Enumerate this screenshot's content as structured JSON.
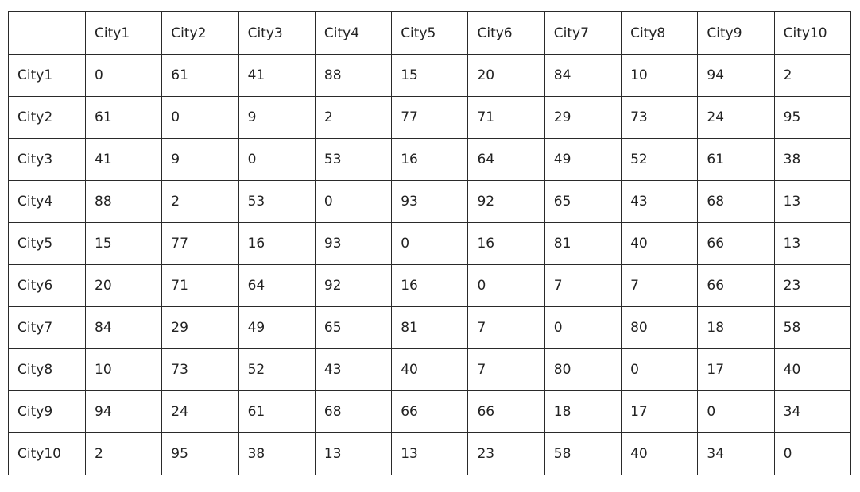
{
  "table": {
    "corner": "",
    "columns": [
      "City1",
      "City2",
      "City3",
      "City4",
      "City5",
      "City6",
      "City7",
      "City8",
      "City9",
      "City10"
    ],
    "rows": [
      {
        "label": "City1",
        "values": [
          "0",
          "61",
          "41",
          "88",
          "15",
          "20",
          "84",
          "10",
          "94",
          "2"
        ]
      },
      {
        "label": "City2",
        "values": [
          "61",
          "0",
          "9",
          "2",
          "77",
          "71",
          "29",
          "73",
          "24",
          "95"
        ]
      },
      {
        "label": "City3",
        "values": [
          "41",
          "9",
          "0",
          "53",
          "16",
          "64",
          "49",
          "52",
          "61",
          "38"
        ]
      },
      {
        "label": "City4",
        "values": [
          "88",
          "2",
          "53",
          "0",
          "93",
          "92",
          "65",
          "43",
          "68",
          "13"
        ]
      },
      {
        "label": "City5",
        "values": [
          "15",
          "77",
          "16",
          "93",
          "0",
          "16",
          "81",
          "40",
          "66",
          "13"
        ]
      },
      {
        "label": "City6",
        "values": [
          "20",
          "71",
          "64",
          "92",
          "16",
          "0",
          "7",
          "7",
          "66",
          "23"
        ]
      },
      {
        "label": "City7",
        "values": [
          "84",
          "29",
          "49",
          "65",
          "81",
          "7",
          "0",
          "80",
          "18",
          "58"
        ]
      },
      {
        "label": "City8",
        "values": [
          "10",
          "73",
          "52",
          "43",
          "40",
          "7",
          "80",
          "0",
          "17",
          "40"
        ]
      },
      {
        "label": "City9",
        "values": [
          "94",
          "24",
          "61",
          "68",
          "66",
          "66",
          "18",
          "17",
          "0",
          "34"
        ]
      },
      {
        "label": "City10",
        "values": [
          "2",
          "95",
          "38",
          "13",
          "13",
          "23",
          "58",
          "40",
          "34",
          "0"
        ]
      }
    ]
  }
}
